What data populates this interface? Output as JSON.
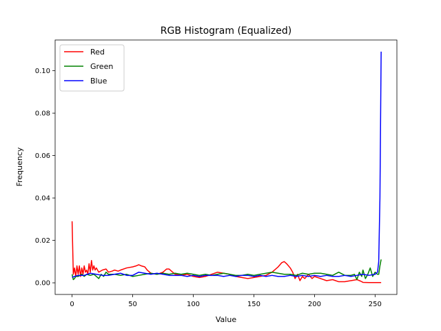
{
  "chart_data": {
    "type": "line",
    "title": "RGB Histogram (Equalized)",
    "xlabel": "Value",
    "ylabel": "Frequency",
    "xlim": [
      -14,
      268
    ],
    "ylim": [
      -0.0055,
      0.1145
    ],
    "xticks": [
      0,
      50,
      100,
      150,
      200,
      250
    ],
    "yticks": [
      0.0,
      0.02,
      0.04,
      0.06,
      0.08,
      0.1
    ],
    "ytick_labels": [
      "0.00",
      "0.02",
      "0.04",
      "0.06",
      "0.08",
      "0.10"
    ],
    "grid": false,
    "legend": "top-left",
    "series": [
      {
        "name": "Red",
        "color": "#ff0000",
        "points": [
          [
            0,
            0.029
          ],
          [
            1,
            0.004
          ],
          [
            2,
            0.007
          ],
          [
            3,
            0.003
          ],
          [
            4,
            0.008
          ],
          [
            5,
            0.004
          ],
          [
            6,
            0.008
          ],
          [
            7,
            0.003
          ],
          [
            8,
            0.007
          ],
          [
            9,
            0.004
          ],
          [
            10,
            0.008
          ],
          [
            11,
            0.005
          ],
          [
            12,
            0.006
          ],
          [
            13,
            0.004
          ],
          [
            14,
            0.009
          ],
          [
            15,
            0.005
          ],
          [
            16,
            0.0105
          ],
          [
            17,
            0.006
          ],
          [
            18,
            0.008
          ],
          [
            19,
            0.006
          ],
          [
            20,
            0.007
          ],
          [
            22,
            0.005
          ],
          [
            25,
            0.006
          ],
          [
            28,
            0.0065
          ],
          [
            30,
            0.005
          ],
          [
            33,
            0.0055
          ],
          [
            35,
            0.006
          ],
          [
            38,
            0.0055
          ],
          [
            40,
            0.006
          ],
          [
            45,
            0.007
          ],
          [
            50,
            0.0075
          ],
          [
            53,
            0.008
          ],
          [
            55,
            0.0085
          ],
          [
            57,
            0.008
          ],
          [
            60,
            0.0075
          ],
          [
            62,
            0.006
          ],
          [
            65,
            0.0045
          ],
          [
            70,
            0.004
          ],
          [
            75,
            0.005
          ],
          [
            78,
            0.0065
          ],
          [
            80,
            0.0065
          ],
          [
            83,
            0.005
          ],
          [
            85,
            0.004
          ],
          [
            90,
            0.0035
          ],
          [
            95,
            0.004
          ],
          [
            100,
            0.003
          ],
          [
            105,
            0.0025
          ],
          [
            110,
            0.003
          ],
          [
            115,
            0.004
          ],
          [
            120,
            0.005
          ],
          [
            125,
            0.0045
          ],
          [
            130,
            0.004
          ],
          [
            135,
            0.003
          ],
          [
            140,
            0.0025
          ],
          [
            145,
            0.002
          ],
          [
            150,
            0.0025
          ],
          [
            155,
            0.003
          ],
          [
            160,
            0.0035
          ],
          [
            165,
            0.005
          ],
          [
            170,
            0.0075
          ],
          [
            173,
            0.0095
          ],
          [
            175,
            0.01
          ],
          [
            177,
            0.009
          ],
          [
            180,
            0.007
          ],
          [
            182,
            0.005
          ],
          [
            184,
            0.002
          ],
          [
            186,
            0.004
          ],
          [
            188,
            0.001
          ],
          [
            190,
            0.003
          ],
          [
            192,
            0.002
          ],
          [
            195,
            0.004
          ],
          [
            198,
            0.002
          ],
          [
            200,
            0.003
          ],
          [
            205,
            0.002
          ],
          [
            210,
            0.001
          ],
          [
            215,
            0.0015
          ],
          [
            220,
            0.0005
          ],
          [
            225,
            0.0005
          ],
          [
            230,
            0.001
          ],
          [
            235,
            0.0015
          ],
          [
            238,
            0.0008
          ],
          [
            240,
            0.0002
          ],
          [
            245,
            0.0001
          ],
          [
            250,
            0.0001
          ],
          [
            255,
            0.0001
          ]
        ]
      },
      {
        "name": "Green",
        "color": "#008000",
        "points": [
          [
            0,
            0.004
          ],
          [
            1,
            0.0015
          ],
          [
            2,
            0.002
          ],
          [
            3,
            0.003
          ],
          [
            5,
            0.003
          ],
          [
            8,
            0.004
          ],
          [
            10,
            0.003
          ],
          [
            12,
            0.004
          ],
          [
            15,
            0.0035
          ],
          [
            18,
            0.004
          ],
          [
            20,
            0.003
          ],
          [
            22,
            0.002
          ],
          [
            24,
            0.004
          ],
          [
            26,
            0.003
          ],
          [
            28,
            0.005
          ],
          [
            30,
            0.004
          ],
          [
            35,
            0.004
          ],
          [
            40,
            0.0035
          ],
          [
            45,
            0.004
          ],
          [
            50,
            0.003
          ],
          [
            55,
            0.0035
          ],
          [
            60,
            0.004
          ],
          [
            65,
            0.0045
          ],
          [
            70,
            0.004
          ],
          [
            75,
            0.0045
          ],
          [
            80,
            0.004
          ],
          [
            85,
            0.0045
          ],
          [
            90,
            0.004
          ],
          [
            95,
            0.0045
          ],
          [
            100,
            0.004
          ],
          [
            105,
            0.0035
          ],
          [
            110,
            0.004
          ],
          [
            115,
            0.0035
          ],
          [
            120,
            0.004
          ],
          [
            125,
            0.0045
          ],
          [
            130,
            0.004
          ],
          [
            135,
            0.0035
          ],
          [
            140,
            0.0035
          ],
          [
            145,
            0.004
          ],
          [
            150,
            0.0035
          ],
          [
            155,
            0.004
          ],
          [
            160,
            0.0045
          ],
          [
            165,
            0.005
          ],
          [
            170,
            0.0045
          ],
          [
            175,
            0.004
          ],
          [
            180,
            0.004
          ],
          [
            185,
            0.0035
          ],
          [
            190,
            0.0045
          ],
          [
            195,
            0.004
          ],
          [
            200,
            0.0045
          ],
          [
            205,
            0.0045
          ],
          [
            210,
            0.004
          ],
          [
            215,
            0.0035
          ],
          [
            220,
            0.005
          ],
          [
            225,
            0.0035
          ],
          [
            230,
            0.0035
          ],
          [
            233,
            0.004
          ],
          [
            235,
            0.0015
          ],
          [
            237,
            0.005
          ],
          [
            239,
            0.003
          ],
          [
            240,
            0.006
          ],
          [
            242,
            0.002
          ],
          [
            244,
            0.004
          ],
          [
            246,
            0.007
          ],
          [
            248,
            0.003
          ],
          [
            250,
            0.005
          ],
          [
            252,
            0.004
          ],
          [
            253,
            0.004
          ],
          [
            254,
            0.008
          ],
          [
            255,
            0.011
          ]
        ]
      },
      {
        "name": "Blue",
        "color": "#0000ff",
        "points": [
          [
            0,
            0.0025
          ],
          [
            2,
            0.003
          ],
          [
            5,
            0.0035
          ],
          [
            10,
            0.0035
          ],
          [
            15,
            0.0045
          ],
          [
            20,
            0.004
          ],
          [
            25,
            0.0035
          ],
          [
            30,
            0.0035
          ],
          [
            35,
            0.004
          ],
          [
            40,
            0.0045
          ],
          [
            45,
            0.0035
          ],
          [
            50,
            0.0035
          ],
          [
            55,
            0.005
          ],
          [
            60,
            0.0045
          ],
          [
            65,
            0.004
          ],
          [
            70,
            0.0045
          ],
          [
            75,
            0.004
          ],
          [
            80,
            0.0035
          ],
          [
            85,
            0.0035
          ],
          [
            90,
            0.0035
          ],
          [
            95,
            0.003
          ],
          [
            100,
            0.0035
          ],
          [
            105,
            0.003
          ],
          [
            110,
            0.0035
          ],
          [
            115,
            0.0035
          ],
          [
            120,
            0.0035
          ],
          [
            125,
            0.003
          ],
          [
            130,
            0.0035
          ],
          [
            135,
            0.003
          ],
          [
            140,
            0.0035
          ],
          [
            145,
            0.0035
          ],
          [
            150,
            0.003
          ],
          [
            155,
            0.0035
          ],
          [
            160,
            0.003
          ],
          [
            165,
            0.0035
          ],
          [
            170,
            0.003
          ],
          [
            175,
            0.003
          ],
          [
            180,
            0.0035
          ],
          [
            185,
            0.003
          ],
          [
            190,
            0.0035
          ],
          [
            195,
            0.003
          ],
          [
            200,
            0.0035
          ],
          [
            205,
            0.003
          ],
          [
            210,
            0.0035
          ],
          [
            215,
            0.003
          ],
          [
            220,
            0.003
          ],
          [
            225,
            0.0035
          ],
          [
            230,
            0.003
          ],
          [
            235,
            0.0035
          ],
          [
            240,
            0.004
          ],
          [
            245,
            0.0035
          ],
          [
            250,
            0.004
          ],
          [
            252,
            0.005
          ],
          [
            253,
            0.01
          ],
          [
            254,
            0.04
          ],
          [
            255,
            0.109
          ]
        ]
      }
    ]
  }
}
